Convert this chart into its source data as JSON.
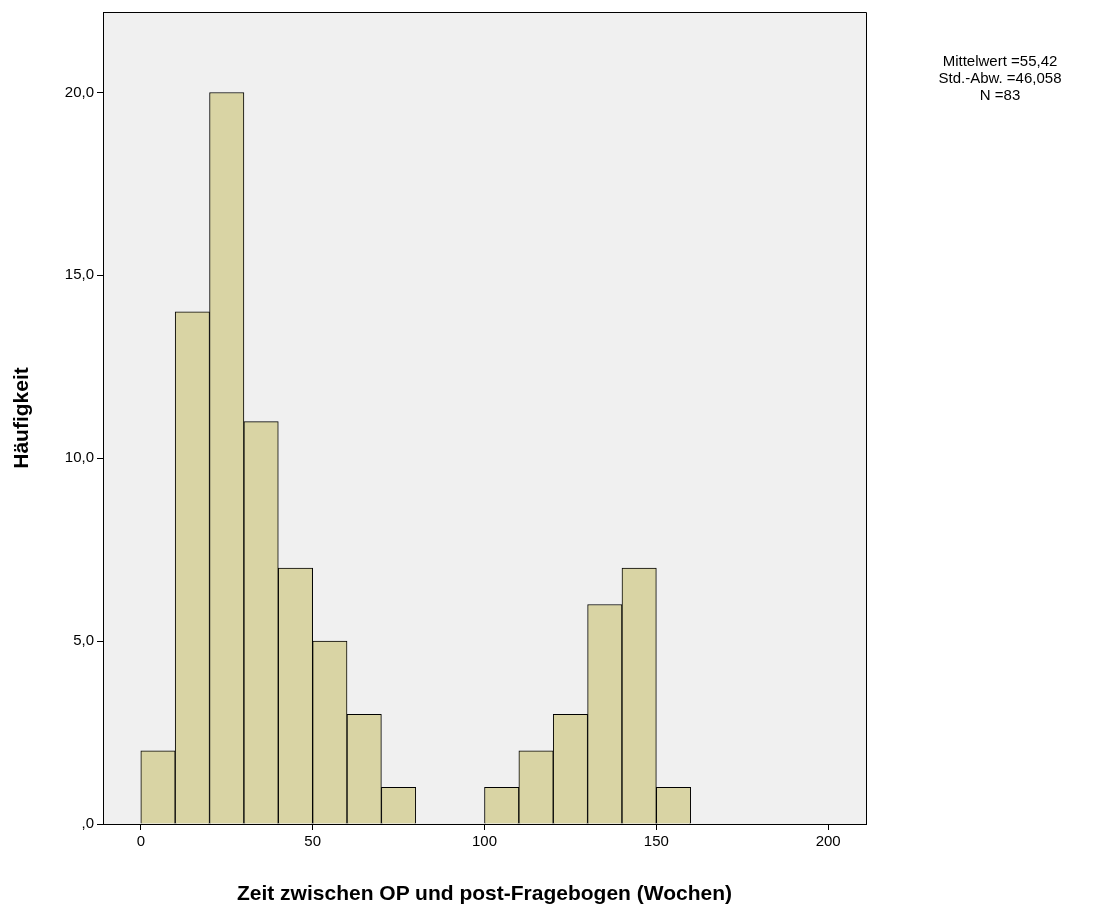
{
  "chart_data": {
    "type": "histogram",
    "xlabel": "Zeit zwischen OP und post-Fragebogen (Wochen)",
    "ylabel": "Häufigkeit",
    "bins": [
      0,
      10,
      20,
      30,
      40,
      50,
      60,
      70,
      80,
      90,
      100,
      110,
      120,
      130,
      140,
      150,
      160
    ],
    "values": [
      2,
      14,
      20,
      11,
      7,
      5,
      3,
      1,
      0,
      0,
      1,
      2,
      3,
      6,
      7,
      1
    ],
    "color": "#d9d4a4",
    "xlim": [
      -11,
      211
    ],
    "xticks": [
      0,
      50,
      100,
      150,
      200
    ],
    "ylim": [
      0,
      22.2
    ],
    "yticks": [
      {
        "value": 0,
        "label": ",0"
      },
      {
        "value": 5,
        "label": "5,0"
      },
      {
        "value": 10,
        "label": "10,0"
      },
      {
        "value": 15,
        "label": "15,0"
      },
      {
        "value": 20,
        "label": "20,0"
      }
    ],
    "grid": false,
    "legend": false,
    "annotations": [
      "Mittelwert =55,42",
      "Std.-Abw. =46,058",
      "N =83"
    ]
  }
}
